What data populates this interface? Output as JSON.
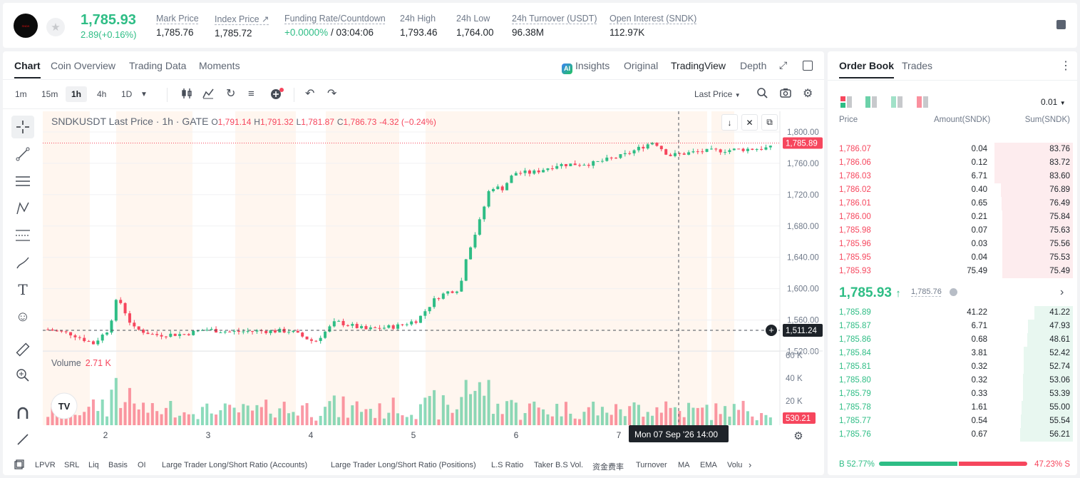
{
  "header": {
    "logo_text": "SNDK",
    "last_price": "1,785.93",
    "change": "2.89(+0.16%)",
    "stats": [
      {
        "label": "Mark Price",
        "value": "1,785.76"
      },
      {
        "label": "Index Price ↗",
        "value": "1,785.72"
      },
      {
        "label": "Funding Rate/Countdown",
        "value_rate": "+0.0000%",
        "value_countdown": "/ 03:04:06"
      },
      {
        "label": "24h High",
        "value": "1,793.46"
      },
      {
        "label": "24h Low",
        "value": "1,764.00"
      },
      {
        "label": "24h Turnover (USDT)",
        "value": "96.38M"
      },
      {
        "label": "Open Interest (SNDK)",
        "value": "112.97K"
      }
    ]
  },
  "chart_tabs": [
    "Chart",
    "Coin Overview",
    "Trading Data",
    "Moments"
  ],
  "view_tabs": {
    "insights": "Insights",
    "original": "Original",
    "tradingview": "TradingView",
    "depth": "Depth"
  },
  "intervals": [
    "1m",
    "15m",
    "1h",
    "4h",
    "1D"
  ],
  "price_type": "Last Price",
  "legend": {
    "symbol": "SNDKUSDT Last Price · 1h · GATE",
    "o": "O",
    "o_val": "1,791.14",
    "h": "H",
    "h_val": "1,791.32",
    "l": "L",
    "l_val": "1,781.87",
    "c": "C",
    "c_val": "1,786.73",
    "chg": "-4.32 (−0.24%)"
  },
  "volume_legend": {
    "label": "Volume",
    "value": "2.71 K"
  },
  "crosshair": {
    "price_label": "1,511.24",
    "time_label": "Mon 07 Sep '26   14:00",
    "last_label": "1,785.89",
    "vol_label": "530.21"
  },
  "indicators": [
    "LPVR",
    "SRL",
    "Liq",
    "Basis",
    "OI",
    "Large Trader Long/Short Ratio (Accounts)",
    "Large Trader Long/Short Ratio (Positions)",
    "L.S Ratio",
    "Taker B.S Vol.",
    "资金费率",
    "Turnover",
    "MA",
    "EMA",
    "Volu"
  ],
  "order_book": {
    "tabs": [
      "Order Book",
      "Trades"
    ],
    "tick": "0.01",
    "headers": [
      "Price",
      "Amount(SNDK)",
      "Sum(SNDK)"
    ],
    "asks": [
      [
        "1,786.07",
        "0.04",
        "83.76"
      ],
      [
        "1,786.06",
        "0.12",
        "83.72"
      ],
      [
        "1,786.03",
        "6.71",
        "83.60"
      ],
      [
        "1,786.02",
        "0.40",
        "76.89"
      ],
      [
        "1,786.01",
        "0.65",
        "76.49"
      ],
      [
        "1,786.00",
        "0.21",
        "75.84"
      ],
      [
        "1,785.98",
        "0.07",
        "75.63"
      ],
      [
        "1,785.96",
        "0.03",
        "75.56"
      ],
      [
        "1,785.95",
        "0.04",
        "75.53"
      ],
      [
        "1,785.93",
        "75.49",
        "75.49"
      ]
    ],
    "mid_price": "1,785.93",
    "mark": "1,785.76",
    "bids": [
      [
        "1,785.89",
        "41.22",
        "41.22"
      ],
      [
        "1,785.87",
        "6.71",
        "47.93"
      ],
      [
        "1,785.86",
        "0.68",
        "48.61"
      ],
      [
        "1,785.84",
        "3.81",
        "52.42"
      ],
      [
        "1,785.81",
        "0.32",
        "52.74"
      ],
      [
        "1,785.80",
        "0.32",
        "53.06"
      ],
      [
        "1,785.79",
        "0.33",
        "53.39"
      ],
      [
        "1,785.78",
        "1.61",
        "55.00"
      ],
      [
        "1,785.77",
        "0.54",
        "55.54"
      ],
      [
        "1,785.76",
        "0.67",
        "56.21"
      ]
    ],
    "buy_ratio": "B 52.77%",
    "sell_ratio": "47.23% S",
    "buy_pct": 52.77
  },
  "chart_data": {
    "type": "candlestick",
    "y_ticks": [
      "1,800.00",
      "1,760.00",
      "1,720.00",
      "1,680.00",
      "1,640.00",
      "1,600.00",
      "1,560.00",
      "1,520.00"
    ],
    "x_ticks": [
      "2",
      "3",
      "4",
      "5",
      "6",
      "7"
    ],
    "vol_ticks": [
      "60 K",
      "40 K",
      "20 K"
    ],
    "ylim": [
      1505,
      1810
    ],
    "colors": {
      "up": "#2ebd85",
      "down": "#f6465d"
    }
  }
}
